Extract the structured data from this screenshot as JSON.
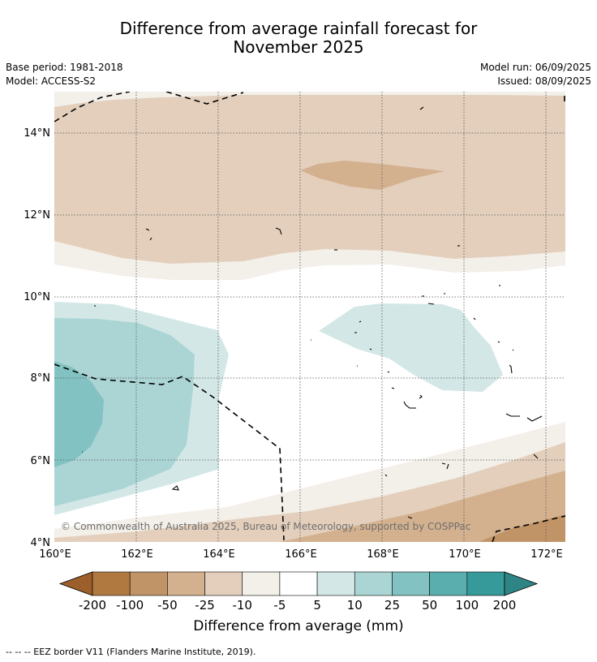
{
  "title_line1": "Difference from average rainfall forecast for",
  "title_line2": "November 2025",
  "base_period": "Base period: 1981-2018",
  "model": "Model: ACCESS-S2",
  "model_run": "Model run: 06/09/2025",
  "issued": "Issued: 08/09/2025",
  "lat_labels": [
    "14°N",
    "12°N",
    "10°N",
    "8°N",
    "6°N",
    "4°N"
  ],
  "lon_labels": [
    "160°E",
    "162°E",
    "164°E",
    "166°E",
    "168°E",
    "170°E",
    "172°E"
  ],
  "copyright": "© Commonwealth of Australia 2025, Bureau of Meteorology, supported by COSPPac",
  "colorbar": {
    "title": "Difference from average (mm)",
    "tick_labels": [
      "-200",
      "-100",
      "-50",
      "-25",
      "-10",
      "-5",
      "5",
      "10",
      "25",
      "50",
      "100",
      "200"
    ],
    "colors": [
      "#9c5f2c",
      "#b07940",
      "#c19467",
      "#d3b18f",
      "#e3cfbc",
      "#f3efe9",
      "#ffffff",
      "#d4e7e7",
      "#abd5d5",
      "#83c2c2",
      "#5aaeae",
      "#36999a",
      "#2f8585"
    ]
  },
  "footnote": "--  --  -- EEZ border V11 (Flanders Marine Institute, 2019)."
}
